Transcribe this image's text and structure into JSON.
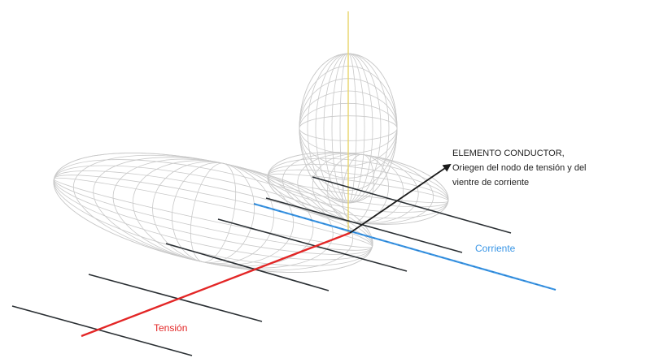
{
  "labels": {
    "conductor_title": "ELEMENTO CONDUCTOR,",
    "conductor_line2": "Oriegen del nodo de tensión y del",
    "conductor_line3": "vientre de corriente",
    "tension": "Tensión",
    "current": "Corriente"
  },
  "colors": {
    "tension": "#e32626",
    "current": "#3a96e6",
    "vertical_axis": "#e8d46a",
    "wire": "#c9c9c9",
    "parallel_lines": "#2a2f33",
    "arrow": "#1a1a1a"
  }
}
